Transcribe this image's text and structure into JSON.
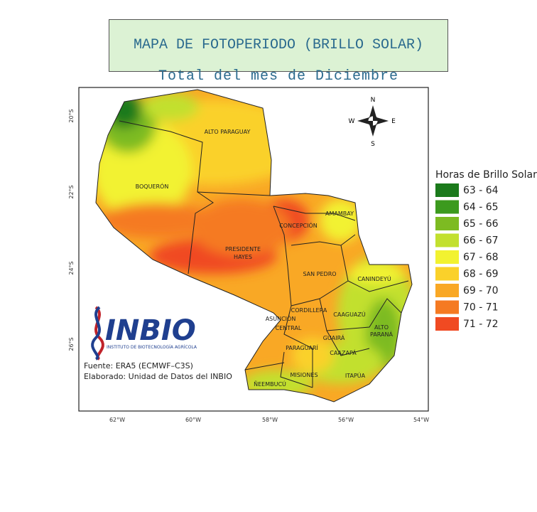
{
  "title": "MAPA DE FOTOPERIODO (BRILLO SOLAR)",
  "subtitle": "Total del mes de Diciembre",
  "legend": {
    "title": "Horas de Brillo Solar",
    "items": [
      {
        "label": "63 - 64",
        "color": "#1b7a1b"
      },
      {
        "label": "64 - 65",
        "color": "#3c9a1e"
      },
      {
        "label": "65 - 66",
        "color": "#7dbb22"
      },
      {
        "label": "66 - 67",
        "color": "#c2e02e"
      },
      {
        "label": "67 - 68",
        "color": "#f2f230"
      },
      {
        "label": "68 - 69",
        "color": "#fad12a"
      },
      {
        "label": "69 - 70",
        "color": "#f9a825"
      },
      {
        "label": "70 - 71",
        "color": "#f57a22"
      },
      {
        "label": "71 - 72",
        "color": "#f04a22"
      }
    ]
  },
  "departments": [
    [
      "ALTO PARAGUAY"
    ],
    [
      "BOQUERÓN"
    ],
    [
      "CONCEPCIÓN"
    ],
    [
      "AMAMBAY"
    ],
    [
      "PRESIDENTE",
      "HAYES"
    ],
    [
      "SAN PEDRO"
    ],
    [
      "CANINDEYÚ"
    ],
    [
      "CORDILLERA"
    ],
    [
      "CAAGUAZÚ"
    ],
    [
      "ASUNCIÓN"
    ],
    [
      "CENTRAL"
    ],
    [
      "ALTO",
      "PARANÁ"
    ],
    [
      "GUAIRÁ"
    ],
    [
      "PARAGUARÍ"
    ],
    [
      "CAAZAPÁ"
    ],
    [
      "MISIONES"
    ],
    [
      "ITAPÚA"
    ],
    [
      "ÑEEMBUCÚ"
    ]
  ],
  "longitude_ticks": [
    "62°W",
    "60°W",
    "58°W",
    "56°W",
    "54°W"
  ],
  "latitude_ticks": [
    "20°S",
    "22°S",
    "24°S",
    "26°S"
  ],
  "compass": [
    "N",
    "S",
    "E",
    "W"
  ],
  "logo": {
    "name": "INBIO",
    "tagline": "INSTITUTO DE BIOTECNOLOGÍA AGRÍCOLA"
  },
  "source": [
    "Fuente: ERA5 (ECMWF–C3S)",
    "Elaborado: Unidad de Datos del INBIO"
  ]
}
